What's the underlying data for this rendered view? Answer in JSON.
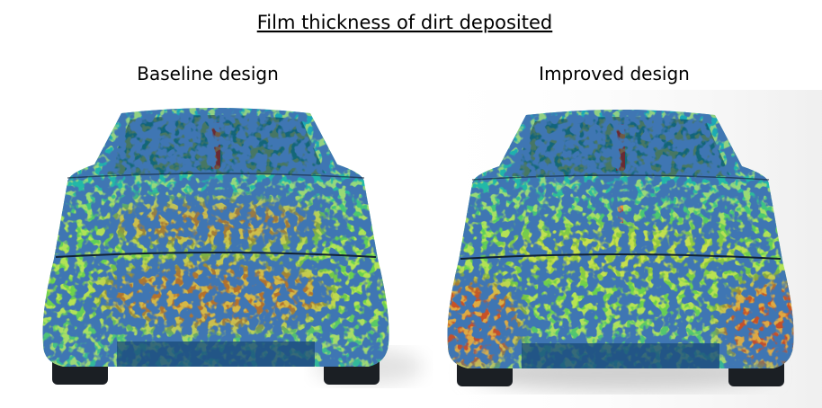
{
  "header": {
    "title": "Film thickness of dirt deposited"
  },
  "panels": [
    {
      "label": "Baseline design"
    },
    {
      "label": "Improved design"
    }
  ]
}
